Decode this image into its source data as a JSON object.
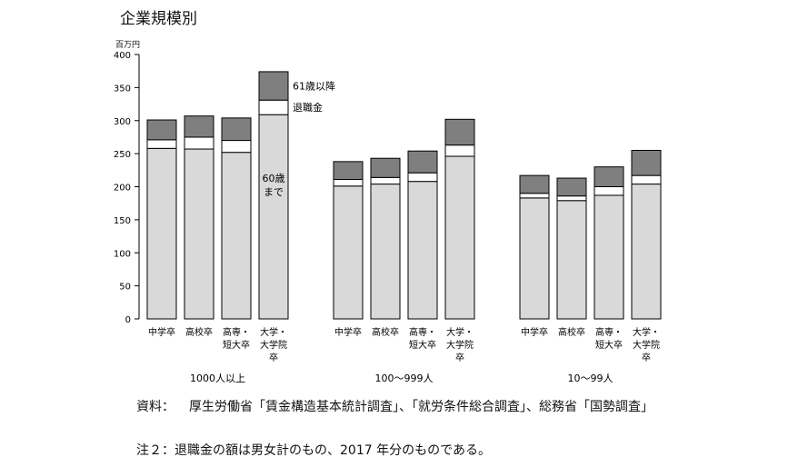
{
  "title": "企業規模別",
  "notes": {
    "source_label": "資料：",
    "source_text": "厚生労働省「賃金構造基本統計調査」、「就労条件総合調査」、総務省「国勢調査」",
    "note2": "注２：退職金の額は男女計のもの、2017 年分のものである。"
  },
  "colors": {
    "until60": "#d9d9d9",
    "retirement": "#ffffff",
    "after61": "#7f7f7f",
    "stroke": "#000000"
  },
  "chart_data": {
    "type": "bar",
    "stacked": true,
    "yunit": "百万円",
    "ylim": [
      0,
      400
    ],
    "yticks": [
      0,
      50,
      100,
      150,
      200,
      250,
      300,
      350,
      400
    ],
    "grid": false,
    "groups": [
      {
        "label": "1000人以上",
        "categories": [
          "中学卒",
          "高校卒",
          "高専・\n短大卒",
          "大学・\n大学院\n卒"
        ]
      },
      {
        "label": "100～999人",
        "categories": [
          "中学卒",
          "高校卒",
          "高専・\n短大卒",
          "大学・\n大学院\n卒"
        ]
      },
      {
        "label": "10～99人",
        "categories": [
          "中学卒",
          "高校卒",
          "高専・\n短大卒",
          "大学・\n大学院\n卒"
        ]
      }
    ],
    "series": [
      {
        "name": "60歳\nまで",
        "values": [
          258,
          257,
          252,
          309,
          201,
          204,
          208,
          246,
          183,
          179,
          187,
          204
        ]
      },
      {
        "name": "退職金",
        "values": [
          13,
          18,
          18,
          22,
          10,
          10,
          13,
          17,
          7,
          7,
          13,
          13
        ]
      },
      {
        "name": "61歳以降",
        "values": [
          30,
          32,
          34,
          43,
          27,
          29,
          33,
          39,
          27,
          27,
          30,
          38
        ]
      }
    ]
  }
}
